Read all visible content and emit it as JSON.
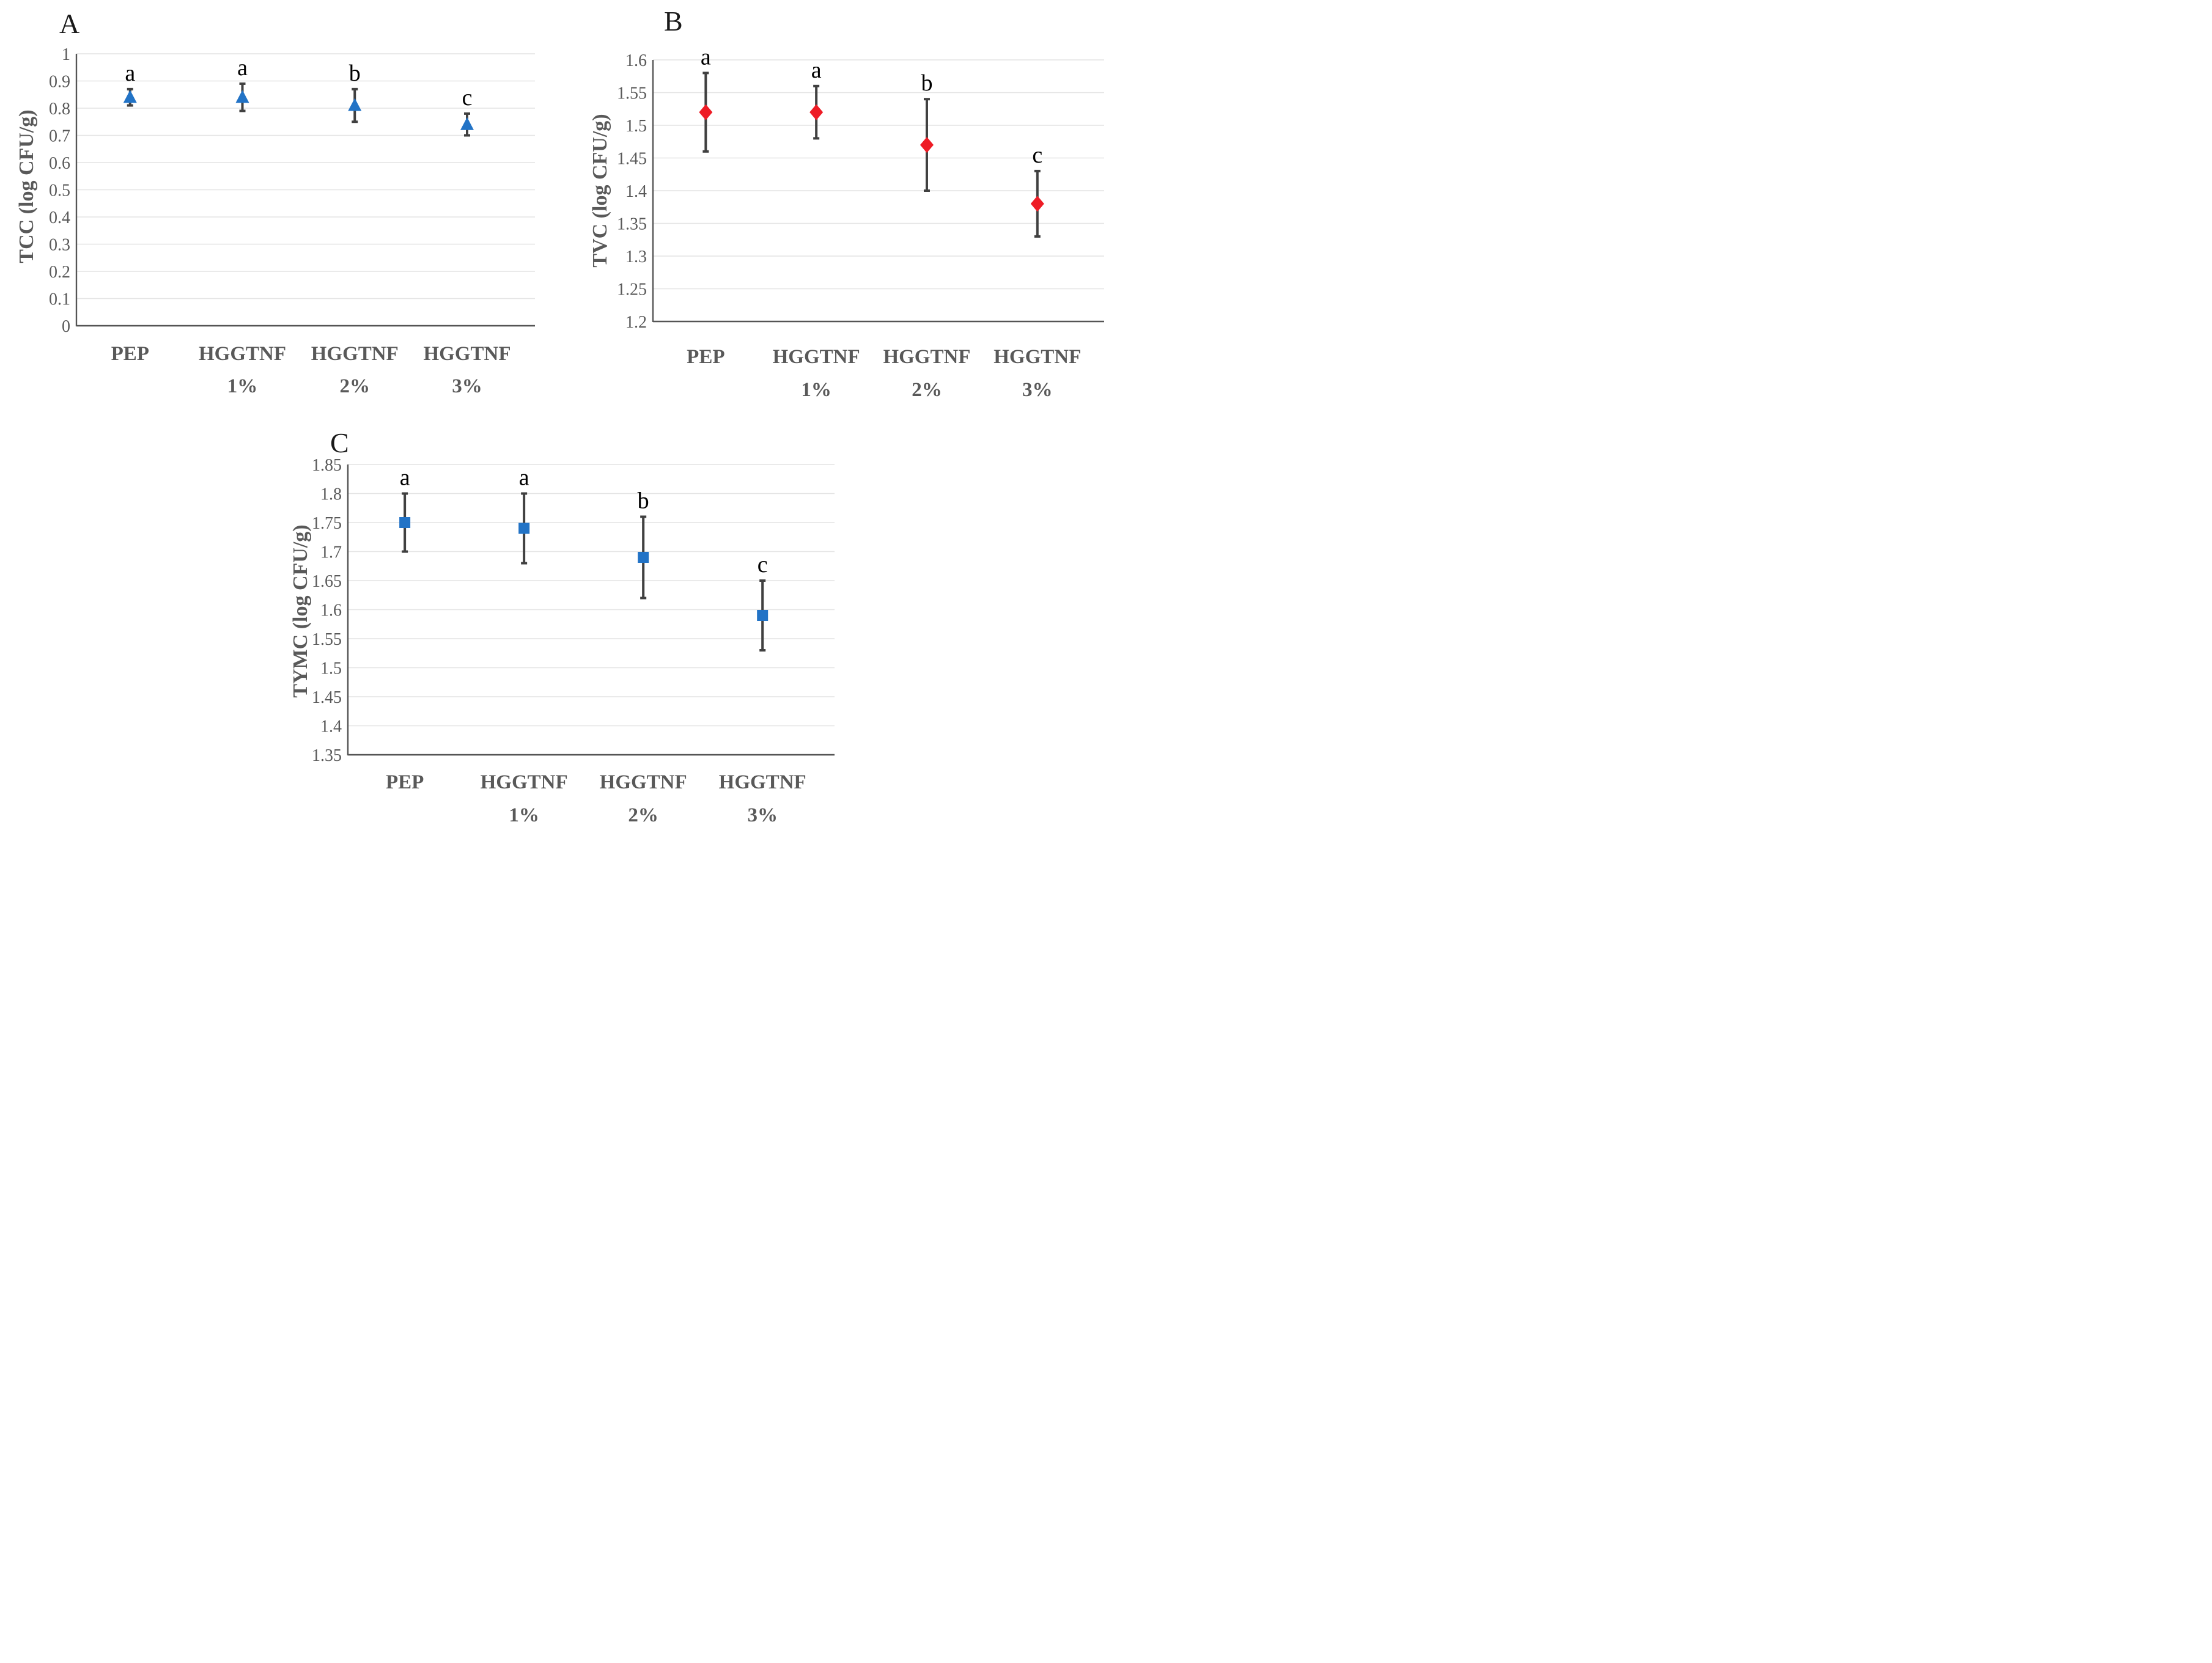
{
  "page": {
    "background": "#FFFFFF",
    "description": "Three-panel scatter figure of microbial counts with error bars and significance letters"
  },
  "colors": {
    "blue_marker": "#2273C6",
    "red_marker": "#EE1C25",
    "error_bar": "#404040",
    "grid_line": "#E4E4E4",
    "axis_line": "#555555",
    "tick_text": "#595959",
    "category_text": "#595959",
    "axis_title_text": "#595959",
    "panel_letter_color": "#1A1A1A",
    "sig_letter_color": "#000000"
  },
  "chart_data": [
    {
      "panel_label": "A",
      "type": "scatter",
      "marker": "triangle",
      "marker_color": "#2273C6",
      "ylabel": "TCC (log CFU/g)",
      "xlabel": "",
      "ylim": [
        0,
        1
      ],
      "ytick_labels": [
        "1",
        "0.9",
        "0.8",
        "0.7",
        "0.6",
        "0.5",
        "0.4",
        "0.3",
        "0.2",
        "0.1",
        "0"
      ],
      "grid": true,
      "legend": "none",
      "categories": [
        [
          "PEP"
        ],
        [
          "HGGTNF",
          "1%"
        ],
        [
          "HGGTNF",
          "2%"
        ],
        [
          "HGGTNF",
          "3%"
        ]
      ],
      "points": [
        {
          "category": "PEP",
          "y": 0.84,
          "err_minus": 0.03,
          "err_plus": 0.03,
          "sig_letter": "a"
        },
        {
          "category": "HGGTNF 1%",
          "y": 0.84,
          "err_minus": 0.05,
          "err_plus": 0.05,
          "sig_letter": "a"
        },
        {
          "category": "HGGTNF 2%",
          "y": 0.81,
          "err_minus": 0.06,
          "err_plus": 0.06,
          "sig_letter": "b"
        },
        {
          "category": "HGGTNF 3%",
          "y": 0.74,
          "err_minus": 0.04,
          "err_plus": 0.04,
          "sig_letter": "c"
        }
      ]
    },
    {
      "panel_label": "B",
      "type": "scatter",
      "marker": "diamond",
      "marker_color": "#EE1C25",
      "ylabel": "TVC (log CFU/g)",
      "xlabel": "",
      "ylim": [
        1.2,
        1.6
      ],
      "ytick_labels": [
        "1.6",
        "1.55",
        "1.5",
        "1.45",
        "1.4",
        "1.35",
        "1.3",
        "1.25",
        "1.2"
      ],
      "grid": true,
      "legend": "none",
      "categories": [
        [
          "PEP"
        ],
        [
          "HGGTNF",
          "1%"
        ],
        [
          "HGGTNF",
          "2%"
        ],
        [
          "HGGTNF",
          "3%"
        ]
      ],
      "points": [
        {
          "category": "PEP",
          "y": 1.52,
          "err_minus": 0.06,
          "err_plus": 0.06,
          "sig_letter": "a"
        },
        {
          "category": "HGGTNF 1%",
          "y": 1.52,
          "err_minus": 0.04,
          "err_plus": 0.04,
          "sig_letter": "a"
        },
        {
          "category": "HGGTNF 2%",
          "y": 1.47,
          "err_minus": 0.07,
          "err_plus": 0.07,
          "sig_letter": "b"
        },
        {
          "category": "HGGTNF 3%",
          "y": 1.38,
          "err_minus": 0.05,
          "err_plus": 0.05,
          "sig_letter": "c"
        }
      ]
    },
    {
      "panel_label": "C",
      "type": "scatter",
      "marker": "square",
      "marker_color": "#2273C6",
      "ylabel": "TYMC (log CFU/g)",
      "xlabel": "",
      "ylim": [
        1.35,
        1.85
      ],
      "ytick_labels": [
        "1.85",
        "1.8",
        "1.75",
        "1.7",
        "1.65",
        "1.6",
        "1.55",
        "1.5",
        "1.45",
        "1.4",
        "1.35"
      ],
      "grid": true,
      "legend": "none",
      "categories": [
        [
          "PEP"
        ],
        [
          "HGGTNF",
          "1%"
        ],
        [
          "HGGTNF",
          "2%"
        ],
        [
          "HGGTNF",
          "3%"
        ]
      ],
      "points": [
        {
          "category": "PEP",
          "y": 1.75,
          "err_minus": 0.05,
          "err_plus": 0.05,
          "sig_letter": "a"
        },
        {
          "category": "HGGTNF 1%",
          "y": 1.74,
          "err_minus": 0.06,
          "err_plus": 0.06,
          "sig_letter": "a"
        },
        {
          "category": "HGGTNF 2%",
          "y": 1.69,
          "err_minus": 0.07,
          "err_plus": 0.07,
          "sig_letter": "b"
        },
        {
          "category": "HGGTNF 3%",
          "y": 1.59,
          "err_minus": 0.06,
          "err_plus": 0.06,
          "sig_letter": "c"
        }
      ]
    }
  ]
}
